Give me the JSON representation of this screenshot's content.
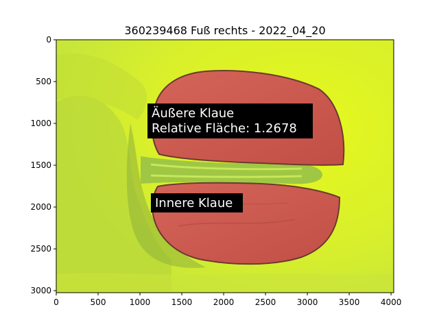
{
  "figure": {
    "title": "360239468 Fuß rechts - 2022_04_20",
    "x_ticks": [
      "0",
      "500",
      "1000",
      "1500",
      "2000",
      "2500",
      "3000",
      "3500",
      "4000"
    ],
    "y_ticks": [
      "0",
      "500",
      "1000",
      "1500",
      "2000",
      "2500",
      "3000"
    ]
  },
  "annotations": {
    "outer": {
      "line1": "Äußere Klaue",
      "line2": "Relative Fläche: 1.2678"
    },
    "inner": {
      "line1": "Innere Klaue"
    }
  },
  "colors": {
    "background": "#d7ef25",
    "background_shadow": "#a9cc3a",
    "claw_mask": "#cc5a50",
    "claw_dark": "#7a3a32",
    "label_bg": "#000000",
    "label_text": "#ffffff"
  }
}
